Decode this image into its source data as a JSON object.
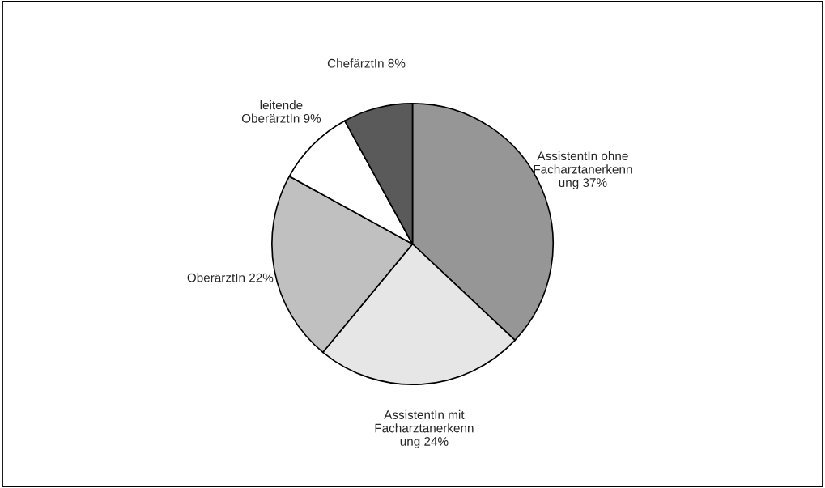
{
  "chart_data": {
    "type": "pie",
    "categories": [
      "AssistentIn ohne\nFacharztanerkenn\nung",
      "AssistentIn mit\nFacharztanerkenn\nung",
      "OberärztIn",
      "leitende\nOberärztIn",
      "ChefärztIn"
    ],
    "values": [
      37,
      24,
      22,
      9,
      8
    ],
    "value_labels": [
      "37%",
      "24%",
      "22%",
      "9%",
      "8%"
    ],
    "colors": [
      "#969696",
      "#e6e6e6",
      "#c0c0c0",
      "#ffffff",
      "#5a5a5a"
    ]
  }
}
